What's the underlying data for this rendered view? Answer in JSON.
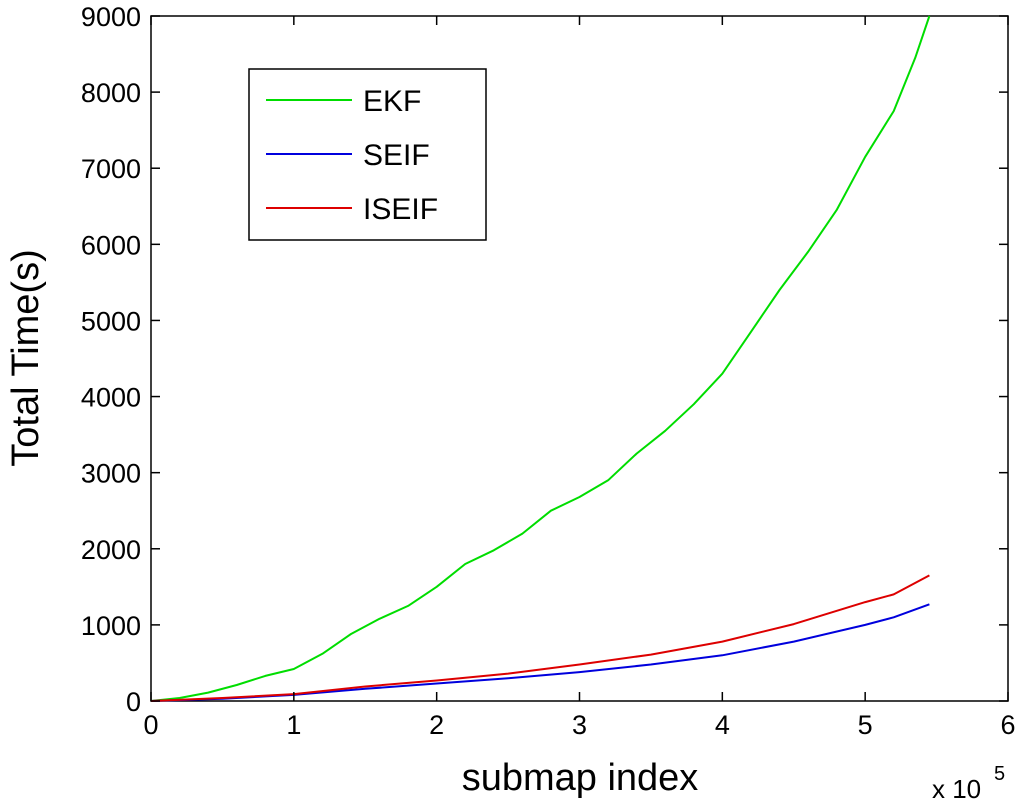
{
  "chart_data": {
    "type": "line",
    "title": "",
    "xlabel": "submap index",
    "ylabel": "Total Time(s)",
    "x_multiplier_label": "x 10",
    "x_multiplier_exponent": "5",
    "xlim": [
      0,
      6
    ],
    "ylim": [
      0,
      9000
    ],
    "xticks": [
      "0",
      "1",
      "2",
      "3",
      "4",
      "5",
      "6"
    ],
    "yticks": [
      "0",
      "1000",
      "2000",
      "3000",
      "4000",
      "5000",
      "6000",
      "7000",
      "8000",
      "9000"
    ],
    "grid": false,
    "legend_position": "top-left",
    "series": [
      {
        "name": "EKF",
        "color": "#00dd00",
        "x": [
          0,
          0.2,
          0.4,
          0.6,
          0.8,
          1.0,
          1.2,
          1.4,
          1.6,
          1.8,
          2.0,
          2.2,
          2.4,
          2.6,
          2.8,
          3.0,
          3.2,
          3.4,
          3.6,
          3.8,
          4.0,
          4.2,
          4.4,
          4.6,
          4.8,
          5.0,
          5.2,
          5.35,
          5.45
        ],
        "y": [
          0,
          40,
          110,
          210,
          330,
          420,
          620,
          880,
          1080,
          1250,
          1500,
          1800,
          1980,
          2200,
          2500,
          2680,
          2900,
          3250,
          3550,
          3900,
          4300,
          4850,
          5400,
          5900,
          6450,
          7150,
          7750,
          8450,
          9000
        ]
      },
      {
        "name": "SEIF",
        "color": "#0000dd",
        "x": [
          0,
          0.5,
          1.0,
          1.5,
          2.0,
          2.5,
          3.0,
          3.5,
          4.0,
          4.5,
          5.0,
          5.2,
          5.45
        ],
        "y": [
          0,
          30,
          80,
          160,
          230,
          300,
          380,
          480,
          600,
          780,
          1000,
          1100,
          1270
        ]
      },
      {
        "name": "ISEIF",
        "color": "#dd0000",
        "x": [
          0,
          0.5,
          1.0,
          1.5,
          2.0,
          2.5,
          3.0,
          3.5,
          4.0,
          4.5,
          5.0,
          5.2,
          5.45
        ],
        "y": [
          0,
          40,
          90,
          190,
          270,
          360,
          480,
          610,
          780,
          1010,
          1300,
          1400,
          1650
        ]
      }
    ]
  }
}
